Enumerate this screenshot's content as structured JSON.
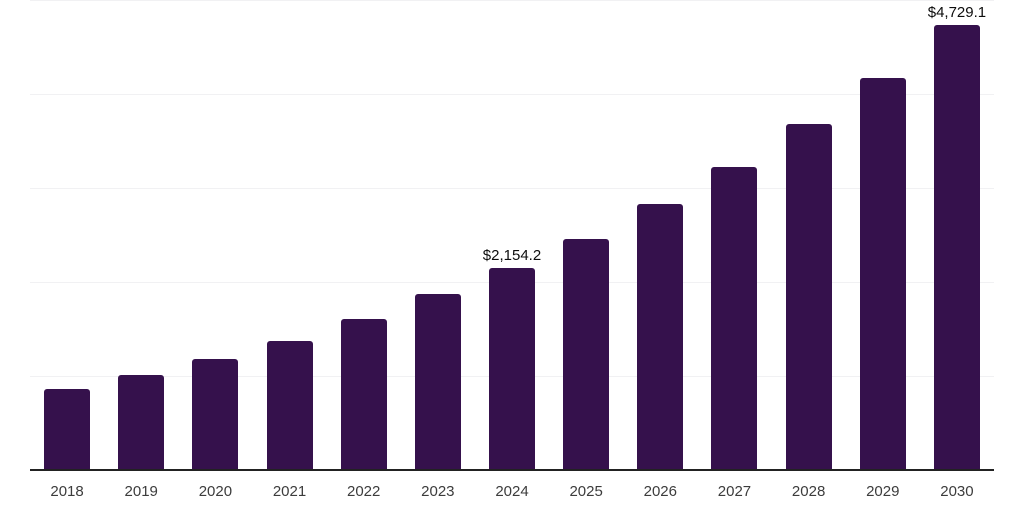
{
  "chart_data": {
    "type": "bar",
    "title": "",
    "xlabel": "",
    "ylabel": "",
    "categories": [
      "2018",
      "2019",
      "2020",
      "2021",
      "2022",
      "2023",
      "2024",
      "2025",
      "2026",
      "2027",
      "2028",
      "2029",
      "2030"
    ],
    "values": [
      860,
      1015,
      1180,
      1375,
      1605,
      1870,
      2154.2,
      2460,
      2830,
      3225,
      3680,
      4170,
      4729.1
    ],
    "annotations": [
      {
        "category": "2024",
        "text": "$2,154.2"
      },
      {
        "category": "2030",
        "text": "$4,729.1"
      }
    ],
    "ylim": [
      0,
      5000
    ],
    "grid_step": 1000,
    "grid": true,
    "legend": false,
    "y_axis_ticks_visible": false,
    "colors": {
      "bar": "#35114C",
      "grid": "#F1F1F3",
      "axis": "#222222",
      "value_label": "#0D0D0D",
      "tick_label": "#3C3C3C",
      "background": "#FFFFFF"
    }
  }
}
